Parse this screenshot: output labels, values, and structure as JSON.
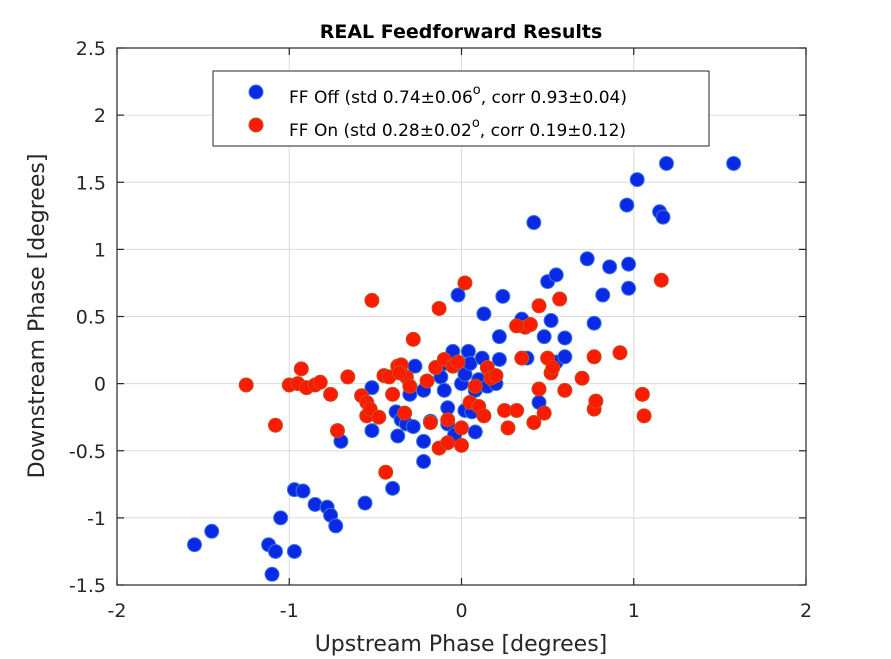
{
  "chart_data": {
    "type": "scatter",
    "title": "REAL Feedforward Results",
    "xlabel": "Upstream Phase [degrees]",
    "ylabel": "Downstream Phase [degrees]",
    "xlim": [
      -2,
      2
    ],
    "ylim": [
      -1.5,
      2.5
    ],
    "xticks": [
      -2,
      -1,
      0,
      1,
      2
    ],
    "yticks": [
      -1.5,
      -1,
      -0.5,
      0,
      0.5,
      1,
      1.5,
      2,
      2.5
    ],
    "xtick_labels": [
      "-2",
      "-1",
      "0",
      "1",
      "2"
    ],
    "ytick_labels": [
      "-1.5",
      "-1",
      "-0.5",
      "0",
      "0.5",
      "1",
      "1.5",
      "2",
      "2.5"
    ],
    "grid": true,
    "legend_position": "top-center",
    "series": [
      {
        "name": "FF Off (std 0.74±0.06",
        "name_sup": "o",
        "name_rest": ", corr 0.93±0.04)",
        "color": "#0a28e6",
        "edge_color": "#3a7bd5",
        "points": [
          [
            -1.55,
            -1.2
          ],
          [
            -1.45,
            -1.1
          ],
          [
            -1.12,
            -1.2
          ],
          [
            -1.08,
            -1.25
          ],
          [
            -1.1,
            -1.42
          ],
          [
            -1.05,
            -1.0
          ],
          [
            -0.97,
            -0.79
          ],
          [
            -0.97,
            -1.25
          ],
          [
            -0.92,
            -0.8
          ],
          [
            -0.85,
            -0.9
          ],
          [
            -0.78,
            -0.92
          ],
          [
            -0.76,
            -0.98
          ],
          [
            -0.73,
            -1.06
          ],
          [
            -0.7,
            -0.43
          ],
          [
            -0.56,
            -0.89
          ],
          [
            -0.52,
            -0.35
          ],
          [
            -0.52,
            -0.03
          ],
          [
            -0.4,
            -0.78
          ],
          [
            -0.38,
            -0.21
          ],
          [
            -0.37,
            -0.39
          ],
          [
            -0.35,
            -0.27
          ],
          [
            -0.32,
            -0.3
          ],
          [
            -0.3,
            -0.08
          ],
          [
            -0.28,
            -0.32
          ],
          [
            -0.27,
            0.13
          ],
          [
            -0.22,
            -0.05
          ],
          [
            -0.22,
            -0.43
          ],
          [
            -0.22,
            -0.58
          ],
          [
            -0.18,
            -0.28
          ],
          [
            -0.12,
            0.05
          ],
          [
            -0.1,
            -0.05
          ],
          [
            -0.08,
            -0.18
          ],
          [
            -0.08,
            -0.3
          ],
          [
            -0.05,
            0.24
          ],
          [
            -0.04,
            -0.38
          ],
          [
            -0.02,
            0.66
          ],
          [
            0.0,
            0.0
          ],
          [
            0.02,
            0.07
          ],
          [
            0.02,
            -0.2
          ],
          [
            0.04,
            0.24
          ],
          [
            0.05,
            0.15
          ],
          [
            0.06,
            -0.21
          ],
          [
            0.08,
            -0.05
          ],
          [
            0.08,
            -0.36
          ],
          [
            0.1,
            0.03
          ],
          [
            0.12,
            0.19
          ],
          [
            0.13,
            0.52
          ],
          [
            0.15,
            -0.02
          ],
          [
            0.2,
            0.0
          ],
          [
            0.22,
            0.35
          ],
          [
            0.22,
            0.18
          ],
          [
            0.24,
            0.65
          ],
          [
            0.38,
            0.19
          ],
          [
            0.42,
            1.2
          ],
          [
            0.45,
            -0.14
          ],
          [
            0.48,
            0.35
          ],
          [
            0.5,
            0.76
          ],
          [
            0.52,
            0.47
          ],
          [
            0.55,
            0.81
          ],
          [
            0.55,
            0.16
          ],
          [
            0.6,
            0.34
          ],
          [
            0.6,
            0.2
          ],
          [
            0.73,
            0.93
          ],
          [
            0.77,
            0.45
          ],
          [
            0.82,
            0.66
          ],
          [
            0.86,
            0.87
          ],
          [
            0.96,
            1.33
          ],
          [
            0.97,
            0.89
          ],
          [
            0.97,
            0.71
          ],
          [
            1.02,
            1.52
          ],
          [
            1.15,
            1.28
          ],
          [
            1.17,
            1.24
          ],
          [
            1.19,
            1.64
          ],
          [
            1.58,
            1.64
          ],
          [
            0.35,
            0.48
          ],
          [
            -0.1,
            0.15
          ]
        ]
      },
      {
        "name": "FF On (std 0.28±0.02",
        "name_sup": "o",
        "name_rest": ", corr 0.19±0.12)",
        "color": "#ff1a00",
        "edge_color": "#c05020",
        "points": [
          [
            -1.25,
            -0.01
          ],
          [
            -1.08,
            -0.31
          ],
          [
            -1.0,
            -0.01
          ],
          [
            -0.95,
            0.0
          ],
          [
            -0.93,
            0.11
          ],
          [
            -0.9,
            -0.03
          ],
          [
            -0.85,
            -0.01
          ],
          [
            -0.82,
            0.01
          ],
          [
            -0.76,
            -0.08
          ],
          [
            -0.72,
            -0.35
          ],
          [
            -0.66,
            0.05
          ],
          [
            -0.58,
            -0.09
          ],
          [
            -0.55,
            -0.24
          ],
          [
            -0.55,
            -0.14
          ],
          [
            -0.53,
            -0.19
          ],
          [
            -0.52,
            0.62
          ],
          [
            -0.48,
            -0.25
          ],
          [
            -0.45,
            0.06
          ],
          [
            -0.42,
            0.05
          ],
          [
            -0.4,
            -0.08
          ],
          [
            -0.37,
            0.13
          ],
          [
            -0.35,
            0.14
          ],
          [
            -0.33,
            -0.22
          ],
          [
            -0.32,
            0.05
          ],
          [
            -0.3,
            -0.02
          ],
          [
            -0.28,
            0.33
          ],
          [
            -0.44,
            -0.66
          ],
          [
            -0.2,
            0.02
          ],
          [
            -0.18,
            -0.29
          ],
          [
            -0.15,
            0.12
          ],
          [
            -0.13,
            -0.48
          ],
          [
            -0.13,
            0.56
          ],
          [
            -0.1,
            0.18
          ],
          [
            -0.08,
            -0.27
          ],
          [
            -0.08,
            -0.44
          ],
          [
            -0.05,
            0.13
          ],
          [
            -0.02,
            0.16
          ],
          [
            0.0,
            -0.33
          ],
          [
            0.0,
            -0.46
          ],
          [
            0.02,
            0.75
          ],
          [
            0.05,
            -0.14
          ],
          [
            0.08,
            -0.02
          ],
          [
            0.1,
            -0.17
          ],
          [
            0.13,
            -0.24
          ],
          [
            0.15,
            0.12
          ],
          [
            0.17,
            0.04
          ],
          [
            0.2,
            0.06
          ],
          [
            0.25,
            -0.2
          ],
          [
            0.27,
            -0.33
          ],
          [
            0.32,
            -0.2
          ],
          [
            0.35,
            0.19
          ],
          [
            0.37,
            0.42
          ],
          [
            0.4,
            0.44
          ],
          [
            0.42,
            -0.29
          ],
          [
            0.45,
            -0.04
          ],
          [
            0.45,
            0.58
          ],
          [
            0.48,
            -0.22
          ],
          [
            0.5,
            0.19
          ],
          [
            0.52,
            0.08
          ],
          [
            0.53,
            0.12
          ],
          [
            0.57,
            0.63
          ],
          [
            0.6,
            -0.05
          ],
          [
            0.7,
            0.04
          ],
          [
            0.77,
            -0.19
          ],
          [
            0.77,
            0.2
          ],
          [
            0.78,
            -0.13
          ],
          [
            0.92,
            0.23
          ],
          [
            1.05,
            -0.08
          ],
          [
            1.06,
            -0.24
          ],
          [
            1.16,
            0.77
          ],
          [
            0.32,
            0.43
          ],
          [
            -0.36,
            0.08
          ]
        ]
      }
    ]
  }
}
